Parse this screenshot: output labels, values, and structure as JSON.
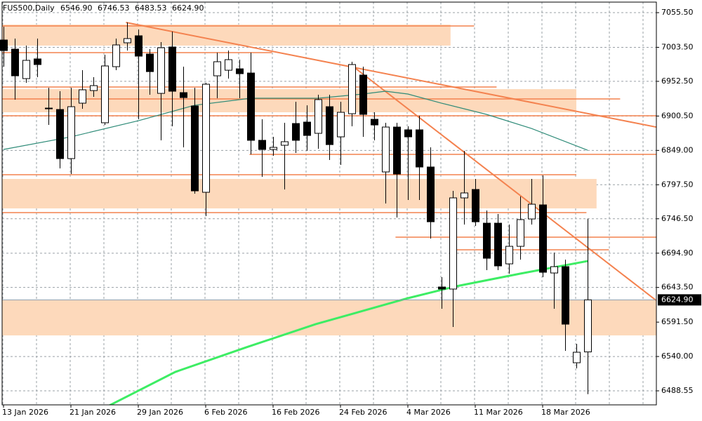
{
  "chart_data": {
    "type": "candlestick",
    "title": "FUS500,Daily",
    "ohlc_labels": [
      "6546.90",
      "6746.53",
      "6483.53",
      "6624.90"
    ],
    "categories": [
      "13 Jan 2026",
      null,
      null,
      null,
      null,
      null,
      "21 Jan 2026",
      null,
      null,
      null,
      null,
      null,
      "29 Jan 2026",
      null,
      null,
      null,
      null,
      null,
      "6 Feb 2026",
      null,
      null,
      null,
      null,
      null,
      "16 Feb 2026",
      null,
      null,
      null,
      null,
      null,
      "24 Feb 2026",
      null,
      null,
      null,
      null,
      null,
      "4 Mar 2026",
      null,
      null,
      null,
      null,
      null,
      "11 Mar 2026",
      null,
      null,
      null,
      null,
      null,
      "18 Mar 2026",
      null,
      null,
      null,
      null
    ],
    "open": [
      7014.5,
      7000.8,
      6956.6,
      6986.1,
      6912.4,
      6910.3,
      6836.7,
      6919.8,
      6938.7,
      6890.4,
      6974.5,
      7010.3,
      7020.8,
      6993.4,
      6934.5,
      7004.0,
      6935.6,
      6915.6,
      6786.2,
      6960.8,
      6969.2,
      6971.3,
      6965.0,
      6864.1,
      6850.4,
      6856.7,
      6889.3,
      6891.4,
      6874.6,
      6914.5,
      6869.3,
      6904.0,
      6961.9,
      6895.6,
      6816.7,
      6884.0,
      6879.8,
      6879.8,
      6824.1,
      6644.2,
      6641.1,
      6777.8,
      6790.4,
      6739.9,
      6739.9,
      6678.9,
      6705.2,
      6746.2,
      6767.3,
      6665.2,
      6674.7,
      6530.6,
      6546.9
    ],
    "high": [
      7034.5,
      7016.6,
      7006.1,
      7016.6,
      6942.9,
      6937.7,
      6942.9,
      6969.2,
      6958.7,
      6992.4,
      7016.6,
      7040.8,
      7030.3,
      7000.8,
      7011.3,
      7027.1,
      6974.5,
      6942.9,
      6950.3,
      6995.5,
      6998.7,
      6985.0,
      6995.5,
      6895.6,
      6869.3,
      6890.4,
      6921.9,
      6916.6,
      6932.4,
      6932.4,
      6921.9,
      6981.9,
      6974.5,
      6906.1,
      6890.4,
      6890.4,
      6885.1,
      6900.9,
      6853.5,
      6658.9,
      6788.3,
      6848.3,
      6806.2,
      6758.9,
      6753.6,
      6737.8,
      6779.9,
      6806.2,
      6811.5,
      6695.8,
      6685.2,
      6559.0,
      6746.53
    ],
    "low": [
      6974.5,
      6925.1,
      6950.3,
      6958.7,
      6887.2,
      6822.0,
      6813.6,
      6911.4,
      6929.3,
      6887.2,
      6969.2,
      6998.7,
      6895.6,
      6932.4,
      6864.1,
      6885.1,
      6853.5,
      6784.1,
      6750.4,
      6927.2,
      6956.6,
      6927.2,
      6843.0,
      6809.4,
      6840.9,
      6790.4,
      6845.1,
      6848.3,
      6851.4,
      6834.6,
      6827.2,
      6885.1,
      6869.3,
      6864.1,
      6769.4,
      6748.3,
      6774.6,
      6774.6,
      6716.8,
      6611.6,
      6584.2,
      6737.8,
      6735.7,
      6669.5,
      6669.5,
      6664.2,
      6685.2,
      6737.8,
      6658.9,
      6611.6,
      6548.5,
      6522.2,
      6483.53
    ],
    "close": [
      6998.7,
      6960.8,
      6984.0,
      6977.7,
      6911.4,
      6836.7,
      6914.5,
      6939.8,
      6946.1,
      6975.6,
      7007.1,
      7016.6,
      6990.3,
      6967.1,
      7002.9,
      6937.7,
      6928.2,
      6788.3,
      6948.2,
      6981.9,
      6985.0,
      6964.0,
      6864.1,
      6850.4,
      6853.5,
      6862.0,
      6864.1,
      6871.4,
      6925.1,
      6857.7,
      6906.1,
      6977.7,
      6903.0,
      6887.2,
      6884.0,
      6813.6,
      6869.3,
      6824.1,
      6742.0,
      6641.1,
      6777.8,
      6785.2,
      6742.0,
      6687.3,
      6675.8,
      6705.2,
      6745.2,
      6768.3,
      6666.3,
      6674.7,
      6588.5,
      6546.4,
      6624.9
    ],
    "ylim": [
      6467.5,
      7071.3
    ],
    "yticks": [
      {
        "value": 7055.5,
        "label": "7055.50"
      },
      {
        "value": 7003.5,
        "label": "7003.50"
      },
      {
        "value": 6952.5,
        "label": "6952.50"
      },
      {
        "value": 6900.5,
        "label": "6900.50"
      },
      {
        "value": 6849,
        "label": "6849.00"
      },
      {
        "value": 6797.5,
        "label": "6797.50"
      },
      {
        "value": 6746.5,
        "label": "6746.50"
      },
      {
        "value": 6694.9,
        "label": "6694.90"
      },
      {
        "value": 6643.5,
        "label": "6643.50"
      },
      {
        "value": 6591.5,
        "label": "6591.50"
      },
      {
        "value": 6540,
        "label": "6540.00"
      },
      {
        "value": 6488.55,
        "label": "6488.55"
      }
    ],
    "grid": true,
    "zones": [
      {
        "low": 7006.1,
        "high": 7037.6,
        "from": -0.1,
        "to": 39.8
      },
      {
        "low": 6906.1,
        "high": 6940.8,
        "from": -0.1,
        "to": 51
      },
      {
        "low": 6762.0,
        "high": 6806.2,
        "from": -0.1,
        "to": 52.8
      },
      {
        "low": 6571.6,
        "high": 6624.2,
        "from": -0.1,
        "to": 58.2
      }
    ],
    "zone_color": "#fdd9bb",
    "levels": [
      {
        "price": 7035.5,
        "from": -0.1,
        "to": 41.9
      },
      {
        "price": 6995.5,
        "from": -0.1,
        "to": 23.9
      },
      {
        "price": 6944.0,
        "from": -0.1,
        "to": 43.9
      },
      {
        "price": 6926.1,
        "from": -0.1,
        "to": 54.9
      },
      {
        "price": 6900.9,
        "from": -0.1,
        "to": 58.2
      },
      {
        "price": 6843.0,
        "from": 21.9,
        "to": 58.2
      },
      {
        "price": 6812.5,
        "from": -0.1,
        "to": 51
      },
      {
        "price": 6755.7,
        "from": -0.1,
        "to": 51.9
      },
      {
        "price": 6718.9,
        "from": 34.9,
        "to": 58.2
      },
      {
        "price": 6700.0,
        "from": 39.9,
        "to": 53.9
      }
    ],
    "trendlines": [
      {
        "from": [
          10.9,
          7040.8
        ],
        "to": [
          58.1,
          6884.0
        ]
      },
      {
        "from": [
          30.9,
          6977.7
        ],
        "to": [
          58.1,
          6624.2
        ]
      }
    ],
    "line_color": "#f4824f",
    "moving_averages": [
      {
        "color": "#2e8b78",
        "x": [
          0,
          6,
          12,
          17,
          22,
          28,
          32,
          34,
          36,
          39,
          43,
          47,
          52
        ],
        "values": [
          6850.4,
          6869.3,
          6893.5,
          6916.6,
          6927.2,
          6927.2,
          6933.5,
          6937.7,
          6933.5,
          6919.8,
          6903.0,
          6881.9,
          6849.3
        ]
      },
      {
        "color": "#3ded64",
        "x": [
          9.4,
          15.3,
          21.6,
          27.8,
          36,
          40.3,
          46,
          52
        ],
        "values": [
          6466.4,
          6516.9,
          6553.7,
          6588.5,
          6627.4,
          6645.3,
          6664.2,
          6683.1
        ]
      }
    ]
  }
}
